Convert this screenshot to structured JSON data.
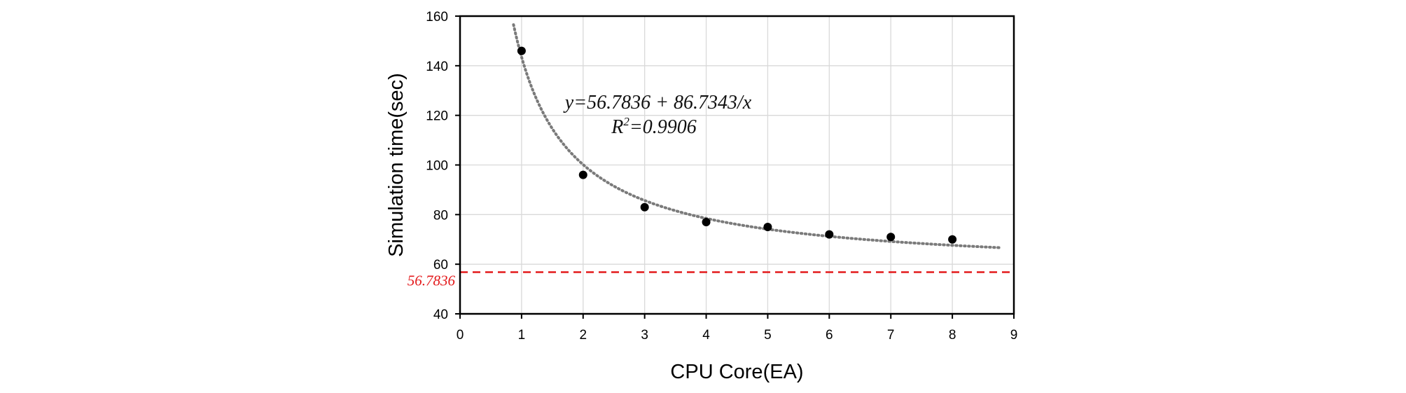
{
  "chart_data": {
    "type": "scatter",
    "xlabel": "CPU Core(EA)",
    "ylabel": "Simulation time(sec)",
    "xlim": [
      0,
      9
    ],
    "ylim": [
      40,
      160
    ],
    "x_ticks": [
      0,
      1,
      2,
      3,
      4,
      5,
      6,
      7,
      8,
      9
    ],
    "y_ticks": [
      40,
      60,
      80,
      100,
      120,
      140,
      160
    ],
    "x_tick_labels": [
      "0",
      "1",
      "2",
      "3",
      "4",
      "5",
      "6",
      "7",
      "8",
      "9"
    ],
    "y_tick_labels": [
      "40",
      "60",
      "80",
      "100",
      "120",
      "140",
      "160"
    ],
    "grid": true,
    "series": [
      {
        "x": [
          1,
          2,
          3,
          4,
          5,
          6,
          7,
          8
        ],
        "y": [
          146,
          96,
          83,
          77,
          75,
          72,
          71,
          70
        ],
        "color": "#000000",
        "marker": "circle"
      }
    ],
    "fit": {
      "equation": "y=56.7836 + 86.7343/x",
      "r_squared_label": "R",
      "r_squared_sup": "2",
      "r_squared_value": "=0.9906",
      "a": 56.7836,
      "b": 86.7343,
      "x_range": [
        0.65,
        8.8
      ],
      "color": "#7a7a7a",
      "style": "dotted"
    },
    "reference_line": {
      "y": 56.7836,
      "label": "56.7836",
      "color": "#e31a1c",
      "style": "dashed"
    }
  }
}
